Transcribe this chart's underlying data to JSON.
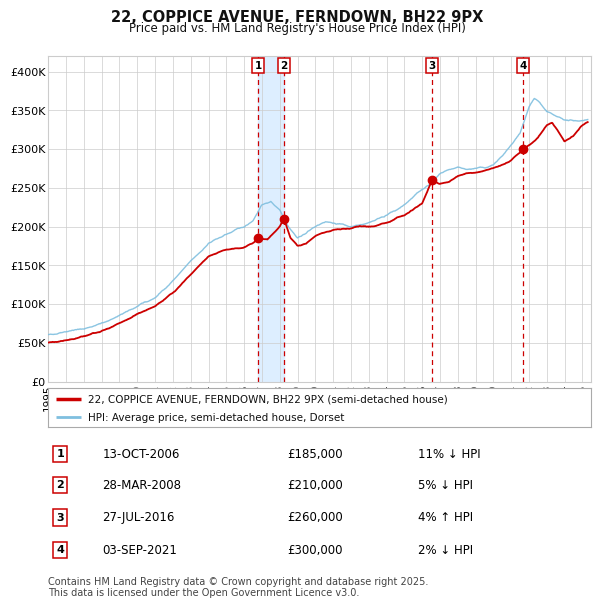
{
  "title": "22, COPPICE AVENUE, FERNDOWN, BH22 9PX",
  "subtitle": "Price paid vs. HM Land Registry's House Price Index (HPI)",
  "hpi_color": "#7fbfdf",
  "price_color": "#cc0000",
  "vline_color": "#cc0000",
  "shade_color": "#ddeeff",
  "marker_color": "#cc0000",
  "grid_color": "#cccccc",
  "background_color": "#ffffff",
  "legend_label_price": "22, COPPICE AVENUE, FERNDOWN, BH22 9PX (semi-detached house)",
  "legend_label_hpi": "HPI: Average price, semi-detached house, Dorset",
  "xlim_start": 1995.0,
  "xlim_end": 2025.5,
  "ylim": [
    0,
    420000
  ],
  "yticks": [
    0,
    50000,
    100000,
    150000,
    200000,
    250000,
    300000,
    350000,
    400000
  ],
  "ytick_labels": [
    "£0",
    "£50K",
    "£100K",
    "£150K",
    "£200K",
    "£250K",
    "£300K",
    "£350K",
    "£400K"
  ],
  "xticks": [
    1995,
    1996,
    1997,
    1998,
    1999,
    2000,
    2001,
    2002,
    2003,
    2004,
    2005,
    2006,
    2007,
    2008,
    2009,
    2010,
    2011,
    2012,
    2013,
    2014,
    2015,
    2016,
    2017,
    2018,
    2019,
    2020,
    2021,
    2022,
    2023,
    2024,
    2025
  ],
  "transactions": [
    {
      "num": 1,
      "date_year": 2006.79,
      "date_str": "13-OCT-2006",
      "price": 185000,
      "pct": "11%",
      "dir": "↓"
    },
    {
      "num": 2,
      "date_year": 2008.24,
      "date_str": "28-MAR-2008",
      "price": 210000,
      "pct": "5%",
      "dir": "↓"
    },
    {
      "num": 3,
      "date_year": 2016.57,
      "date_str": "27-JUL-2016",
      "price": 260000,
      "pct": "4%",
      "dir": "↑"
    },
    {
      "num": 4,
      "date_year": 2021.67,
      "date_str": "03-SEP-2021",
      "price": 300000,
      "pct": "2%",
      "dir": "↓"
    }
  ],
  "footer_line1": "Contains HM Land Registry data © Crown copyright and database right 2025.",
  "footer_line2": "This data is licensed under the Open Government Licence v3.0.",
  "hpi_keys": [
    [
      1995.0,
      60000
    ],
    [
      1996.0,
      65000
    ],
    [
      1997.0,
      68000
    ],
    [
      1998.0,
      75000
    ],
    [
      1999.0,
      85000
    ],
    [
      2000.0,
      97000
    ],
    [
      2001.0,
      108000
    ],
    [
      2002.0,
      130000
    ],
    [
      2003.0,
      155000
    ],
    [
      2004.0,
      178000
    ],
    [
      2005.0,
      190000
    ],
    [
      2006.0,
      200000
    ],
    [
      2006.5,
      208000
    ],
    [
      2007.0,
      228000
    ],
    [
      2007.5,
      232000
    ],
    [
      2008.0,
      222000
    ],
    [
      2008.5,
      200000
    ],
    [
      2009.0,
      185000
    ],
    [
      2009.5,
      192000
    ],
    [
      2010.0,
      200000
    ],
    [
      2010.5,
      205000
    ],
    [
      2011.0,
      205000
    ],
    [
      2011.5,
      203000
    ],
    [
      2012.0,
      200000
    ],
    [
      2012.5,
      202000
    ],
    [
      2013.0,
      205000
    ],
    [
      2013.5,
      210000
    ],
    [
      2014.0,
      215000
    ],
    [
      2014.5,
      220000
    ],
    [
      2015.0,
      228000
    ],
    [
      2015.5,
      238000
    ],
    [
      2016.0,
      248000
    ],
    [
      2016.5,
      255000
    ],
    [
      2017.0,
      268000
    ],
    [
      2017.5,
      272000
    ],
    [
      2018.0,
      276000
    ],
    [
      2018.5,
      274000
    ],
    [
      2019.0,
      275000
    ],
    [
      2019.5,
      276000
    ],
    [
      2020.0,
      280000
    ],
    [
      2020.5,
      290000
    ],
    [
      2021.0,
      305000
    ],
    [
      2021.5,
      320000
    ],
    [
      2022.0,
      355000
    ],
    [
      2022.3,
      365000
    ],
    [
      2022.6,
      360000
    ],
    [
      2023.0,
      348000
    ],
    [
      2023.5,
      342000
    ],
    [
      2024.0,
      338000
    ],
    [
      2024.5,
      336000
    ],
    [
      2025.3,
      338000
    ]
  ],
  "price_keys": [
    [
      1995.0,
      50000
    ],
    [
      1996.0,
      53000
    ],
    [
      1997.0,
      58000
    ],
    [
      1998.0,
      65000
    ],
    [
      1999.0,
      75000
    ],
    [
      2000.0,
      87000
    ],
    [
      2001.0,
      97000
    ],
    [
      2002.0,
      115000
    ],
    [
      2003.0,
      138000
    ],
    [
      2004.0,
      162000
    ],
    [
      2005.0,
      170000
    ],
    [
      2006.0,
      173000
    ],
    [
      2006.5,
      178000
    ],
    [
      2006.79,
      185000
    ],
    [
      2007.0,
      184000
    ],
    [
      2007.3,
      183000
    ],
    [
      2008.0,
      200000
    ],
    [
      2008.24,
      210000
    ],
    [
      2008.6,
      185000
    ],
    [
      2009.0,
      175000
    ],
    [
      2009.5,
      178000
    ],
    [
      2010.0,
      188000
    ],
    [
      2010.5,
      192000
    ],
    [
      2011.0,
      195000
    ],
    [
      2011.5,
      197000
    ],
    [
      2012.0,
      198000
    ],
    [
      2012.5,
      200000
    ],
    [
      2013.0,
      200000
    ],
    [
      2013.5,
      202000
    ],
    [
      2014.0,
      205000
    ],
    [
      2014.5,
      210000
    ],
    [
      2015.0,
      215000
    ],
    [
      2015.5,
      222000
    ],
    [
      2016.0,
      230000
    ],
    [
      2016.57,
      260000
    ],
    [
      2017.0,
      255000
    ],
    [
      2017.5,
      258000
    ],
    [
      2018.0,
      265000
    ],
    [
      2018.5,
      268000
    ],
    [
      2019.0,
      270000
    ],
    [
      2019.5,
      272000
    ],
    [
      2020.0,
      275000
    ],
    [
      2020.5,
      280000
    ],
    [
      2021.0,
      285000
    ],
    [
      2021.67,
      300000
    ],
    [
      2022.0,
      305000
    ],
    [
      2022.3,
      310000
    ],
    [
      2022.5,
      315000
    ],
    [
      2023.0,
      330000
    ],
    [
      2023.3,
      335000
    ],
    [
      2023.7,
      320000
    ],
    [
      2024.0,
      310000
    ],
    [
      2024.5,
      318000
    ],
    [
      2025.0,
      330000
    ],
    [
      2025.3,
      335000
    ]
  ]
}
